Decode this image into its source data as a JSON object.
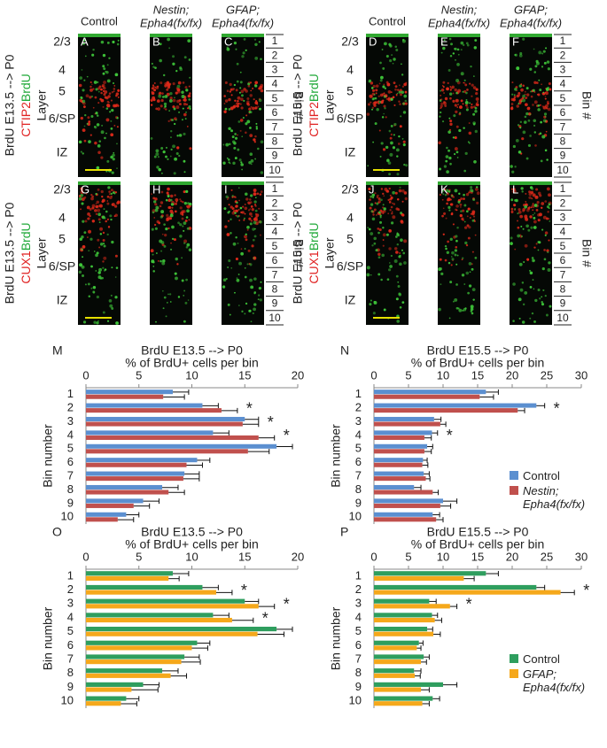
{
  "micrographs": [
    {
      "row_label": "BrdU E13.5 --> P0",
      "stain_red": "CTIP2",
      "stain_green": "BrdU",
      "layer_title": "Layer",
      "layers": [
        "2/3",
        "4",
        "5",
        "6/SP",
        "IZ"
      ],
      "headers": [
        [
          "Control"
        ],
        [
          "Nestin;",
          "Epha4(fx/fx)"
        ],
        [
          "GFAP;",
          "Epha4(fx/fx)"
        ]
      ],
      "panels": [
        "A",
        "B",
        "C"
      ],
      "bins": [
        "1",
        "2",
        "3",
        "4",
        "5",
        "6",
        "7",
        "8",
        "9",
        "10"
      ],
      "bin_title": "Bin #"
    },
    {
      "row_label": "BrdU E15.5 --> P0",
      "stain_red": "CTIP2",
      "stain_green": "BrdU",
      "layer_title": "Layer",
      "layers": [
        "2/3",
        "4",
        "5",
        "6/SP",
        "IZ"
      ],
      "headers": [
        [
          "Control"
        ],
        [
          "Nestin;",
          "Epha4(fx/fx)"
        ],
        [
          "GFAP;",
          "Epha4(fx/fx)"
        ]
      ],
      "panels": [
        "D",
        "E",
        "F"
      ],
      "bins": [
        "1",
        "2",
        "3",
        "4",
        "5",
        "6",
        "7",
        "8",
        "9",
        "10"
      ],
      "bin_title": "Bin #"
    },
    {
      "row_label": "BrdU E13.5 --> P0",
      "stain_red": "CUX1",
      "stain_green": "BrdU",
      "layer_title": "Layer",
      "layers": [
        "2/3",
        "4",
        "5",
        "6/SP",
        "IZ"
      ],
      "panels": [
        "G",
        "H",
        "I"
      ],
      "bins": [
        "1",
        "2",
        "3",
        "4",
        "5",
        "6",
        "7",
        "8",
        "9",
        "10"
      ],
      "bin_title": "Bin #"
    },
    {
      "row_label": "BrdU E15.5 --> P0",
      "stain_red": "CUX1",
      "stain_green": "BrdU",
      "layer_title": "Layer",
      "layers": [
        "2/3",
        "4",
        "5",
        "6/SP",
        "IZ"
      ],
      "panels": [
        "J",
        "K",
        "L"
      ],
      "bins": [
        "1",
        "2",
        "3",
        "4",
        "5",
        "6",
        "7",
        "8",
        "9",
        "10"
      ],
      "bin_title": "Bin #"
    }
  ],
  "chart_data": [
    {
      "type": "hbar",
      "panel": "M",
      "title": "BrdU E13.5 --> P0",
      "subtitle": "% of BrdU+ cells per bin",
      "y_label": "Bin number",
      "categories": [
        "1",
        "2",
        "3",
        "4",
        "5",
        "6",
        "7",
        "8",
        "9",
        "10"
      ],
      "series": [
        {
          "name": "Control",
          "color": "#5b8fd0",
          "values": [
            8.2,
            11,
            15,
            12,
            18,
            10.5,
            9.3,
            7.2,
            5.4,
            3.8
          ],
          "errors": [
            1.5,
            1.5,
            1.3,
            1.5,
            1.5,
            1.2,
            1.4,
            1.5,
            1.5,
            1.2
          ]
        },
        {
          "name": "Nestin; Epha4(fx/fx)",
          "color": "#c0504d",
          "values": [
            7.3,
            12.8,
            14.8,
            16.3,
            15.3,
            9.5,
            9.2,
            7.8,
            4.5,
            3
          ],
          "errors": [
            2,
            1.5,
            1.5,
            1.5,
            2,
            1.5,
            1.5,
            1.5,
            1.5,
            1.5
          ]
        }
      ],
      "annotations": [
        {
          "text": "*",
          "category": "2"
        },
        {
          "text": "*",
          "category": "3"
        },
        {
          "text": "*",
          "category": "4"
        }
      ],
      "xlim": [
        0,
        20
      ],
      "xticks": [
        0,
        5,
        10,
        15,
        20
      ]
    },
    {
      "type": "hbar",
      "panel": "N",
      "title": "BrdU E15.5 --> P0",
      "subtitle": "% of BrdU+ cells per bin",
      "y_label": "Bin number",
      "categories": [
        "1",
        "2",
        "3",
        "4",
        "5",
        "6",
        "7",
        "8",
        "9",
        "10"
      ],
      "series": [
        {
          "name": "Control",
          "color": "#5b8fd0",
          "values": [
            16.2,
            23.5,
            8.7,
            8.4,
            7.7,
            7.1,
            7.2,
            5.8,
            10,
            8.5
          ],
          "errors": [
            1.8,
            1.2,
            1,
            0.8,
            0.8,
            0.6,
            0.8,
            1,
            2,
            1
          ]
        },
        {
          "name": "Nestin; Epha4(fx/fx)",
          "color": "#c0504d",
          "values": [
            15.3,
            20.8,
            9.6,
            7.3,
            7.3,
            7,
            7.5,
            8.5,
            9.6,
            9
          ],
          "errors": [
            2,
            1,
            0.8,
            1,
            1,
            0.8,
            0.6,
            0.8,
            1.5,
            1
          ]
        }
      ],
      "annotations": [
        {
          "text": "*",
          "category": "2"
        },
        {
          "text": "*",
          "category": "4"
        }
      ],
      "legend": "right",
      "xlim": [
        0,
        30
      ],
      "xticks": [
        0,
        5,
        10,
        15,
        20,
        25,
        30
      ]
    },
    {
      "type": "hbar",
      "panel": "O",
      "title": "BrdU E13.5 --> P0",
      "subtitle": "% of BrdU+ cells per bin",
      "y_label": "Bin number",
      "categories": [
        "1",
        "2",
        "3",
        "4",
        "5",
        "6",
        "7",
        "8",
        "9",
        "10"
      ],
      "series": [
        {
          "name": "Control",
          "color": "#2e9e5e",
          "values": [
            8.2,
            11,
            15,
            12,
            18,
            10.5,
            9.3,
            7.2,
            5.4,
            3.8
          ],
          "errors": [
            1.5,
            1.5,
            1.3,
            1.5,
            1.5,
            1.2,
            1.4,
            1.5,
            1.5,
            1.2
          ]
        },
        {
          "name": "GFAP; Epha4(fx/fx)",
          "color": "#f5a81b",
          "values": [
            7.8,
            12.3,
            16.3,
            13.8,
            16.2,
            10,
            9,
            8,
            4.3,
            3.3
          ],
          "errors": [
            1,
            1.5,
            1.5,
            2,
            2.5,
            1.5,
            1.8,
            1.5,
            2.5,
            1.5
          ]
        }
      ],
      "annotations": [
        {
          "text": "*",
          "category": "2"
        },
        {
          "text": "*",
          "category": "3"
        },
        {
          "text": "*",
          "category": "4"
        }
      ],
      "xlim": [
        0,
        20
      ],
      "xticks": [
        0,
        5,
        10,
        15,
        20
      ]
    },
    {
      "type": "hbar",
      "panel": "P",
      "title": "BrdU E15.5 --> P0",
      "subtitle": "% of BrdU+ cells per bin",
      "y_label": "Bin number",
      "categories": [
        "1",
        "2",
        "3",
        "4",
        "5",
        "6",
        "7",
        "8",
        "9",
        "10"
      ],
      "series": [
        {
          "name": "Control",
          "color": "#2e9e5e",
          "values": [
            16.2,
            23.5,
            8,
            8.4,
            7.7,
            6.5,
            7.2,
            5.8,
            10,
            8.5
          ],
          "errors": [
            1.8,
            1.2,
            1,
            0.8,
            0.8,
            0.6,
            0.8,
            1,
            2,
            1
          ]
        },
        {
          "name": "GFAP; Epha4(fx/fx)",
          "color": "#f5a81b",
          "values": [
            13,
            27,
            11,
            8.8,
            8.6,
            6.2,
            6.8,
            5.9,
            6.8,
            7
          ],
          "errors": [
            1.5,
            2,
            1,
            1,
            1,
            0.6,
            0.8,
            0.8,
            1.2,
            1
          ]
        }
      ],
      "annotations": [
        {
          "text": "*",
          "category": "2"
        },
        {
          "text": "*",
          "category": "3"
        }
      ],
      "legend": "right",
      "xlim": [
        0,
        30
      ],
      "xticks": [
        0,
        5,
        10,
        15,
        20,
        25,
        30
      ]
    }
  ]
}
